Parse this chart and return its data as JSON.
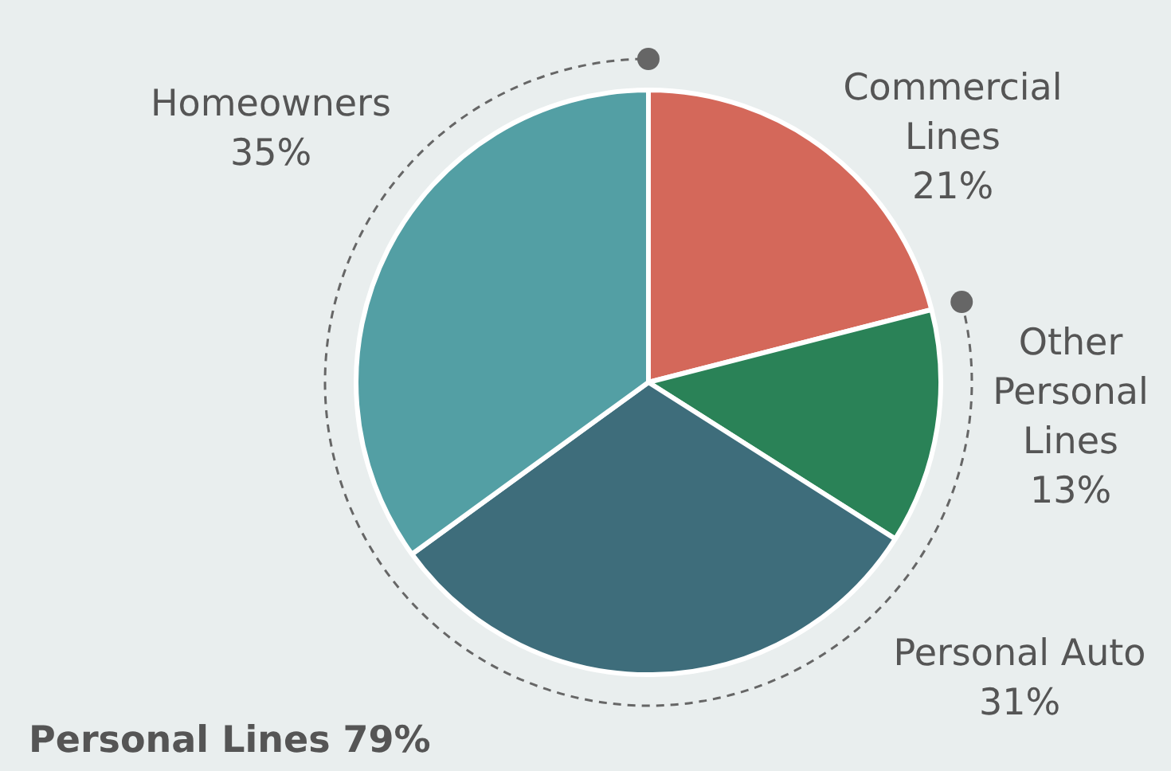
{
  "chart_data": {
    "type": "pie",
    "categories": [
      "Commercial Lines",
      "Other Personal Lines",
      "Personal Auto",
      "Homeowners"
    ],
    "values": [
      21,
      13,
      31,
      35
    ],
    "value_labels": [
      "21%",
      "13%",
      "31%",
      "35%"
    ],
    "colors": [
      "#d4685a",
      "#2a8257",
      "#3e6d7b",
      "#539fa4"
    ],
    "legend": false,
    "annotations": [
      "Personal Lines 79%"
    ]
  }
}
